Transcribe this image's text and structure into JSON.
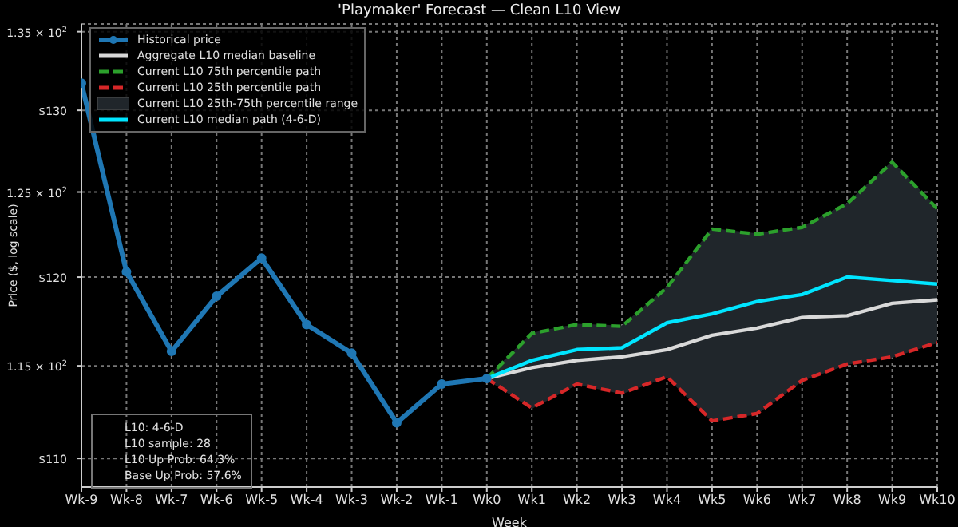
{
  "chart_data": {
    "type": "line",
    "title": "'Playmaker' Forecast — Clean L10 View",
    "xlabel": "Week",
    "ylabel": "Price ($, log scale)",
    "categories": [
      "Wk-9",
      "Wk-8",
      "Wk-7",
      "Wk-6",
      "Wk-5",
      "Wk-4",
      "Wk-3",
      "Wk-2",
      "Wk-1",
      "Wk0",
      "Wk1",
      "Wk2",
      "Wk3",
      "Wk4",
      "Wk5",
      "Wk6",
      "Wk7",
      "Wk8",
      "Wk9",
      "Wk10"
    ],
    "series": [
      {
        "name": "Historical price",
        "color": "#1f77b4",
        "marker": "circle",
        "line_style": "solid",
        "values": [
          131.7,
          120.3,
          115.8,
          118.9,
          121.1,
          117.3,
          115.7,
          111.9,
          114.0,
          114.3,
          null,
          null,
          null,
          null,
          null,
          null,
          null,
          null,
          null,
          null
        ]
      },
      {
        "name": "Aggregate L10 median baseline",
        "color": "#d9d9d9",
        "line_style": "solid",
        "values": [
          null,
          null,
          null,
          null,
          null,
          null,
          null,
          null,
          null,
          114.3,
          114.9,
          115.3,
          115.5,
          115.9,
          116.7,
          117.1,
          117.7,
          117.8,
          118.5,
          118.7
        ]
      },
      {
        "name": "Current L10 75th percentile path",
        "color": "#2ca02c",
        "line_style": "dashed",
        "values": [
          null,
          null,
          null,
          null,
          null,
          null,
          null,
          null,
          null,
          114.3,
          116.8,
          117.3,
          117.2,
          119.4,
          122.8,
          122.5,
          122.9,
          124.3,
          126.8,
          124.0
        ]
      },
      {
        "name": "Current L10 25th percentile path",
        "color": "#d62728",
        "line_style": "dashed",
        "values": [
          null,
          null,
          null,
          null,
          null,
          null,
          null,
          null,
          null,
          114.3,
          112.7,
          114.0,
          113.5,
          114.4,
          112.0,
          112.4,
          114.2,
          115.1,
          115.5,
          116.3
        ]
      },
      {
        "name": "Current L10 25th-75th percentile range",
        "type": "area",
        "color": "#20262b",
        "values": [
          null,
          null,
          null,
          null,
          null,
          null,
          null,
          null,
          null,
          null,
          null,
          null,
          null,
          null,
          null,
          null,
          null,
          null,
          null,
          null
        ],
        "lower": [
          null,
          null,
          null,
          null,
          null,
          null,
          null,
          null,
          null,
          114.3,
          112.7,
          114.0,
          113.5,
          114.4,
          112.0,
          112.4,
          114.2,
          115.1,
          115.5,
          116.3
        ],
        "upper": [
          null,
          null,
          null,
          null,
          null,
          null,
          null,
          null,
          null,
          114.3,
          116.8,
          117.3,
          117.2,
          119.4,
          122.8,
          122.5,
          122.9,
          124.3,
          126.8,
          124.0
        ]
      },
      {
        "name": "Current L10 median path (4-6-D)",
        "color": "#00e5ff",
        "line_style": "solid",
        "values": [
          null,
          null,
          null,
          null,
          null,
          null,
          null,
          null,
          null,
          114.3,
          115.3,
          115.9,
          116.0,
          117.4,
          117.9,
          118.6,
          119.0,
          120.0,
          119.8,
          119.6
        ]
      }
    ],
    "log": "y",
    "ylim": [
      108.5,
      135.5
    ],
    "yticks": [
      {
        "value": 110,
        "label": "$110"
      },
      {
        "value": 115,
        "label": "1.15 × 10$^{2}$"
      },
      {
        "value": 120,
        "label": "$120"
      },
      {
        "value": 125,
        "label": "1.25 × 10$^{2}$"
      },
      {
        "value": 130,
        "label": "$130"
      },
      {
        "value": 135,
        "label": "1.35 × 10$^{2}$"
      }
    ],
    "grid": true,
    "legend": "top left",
    "annotations": [
      "L10: 4-6-D",
      "L10 sample: 28",
      "L10 Up Prob: 64.3%",
      "Base Up Prob: 57.6%"
    ]
  }
}
